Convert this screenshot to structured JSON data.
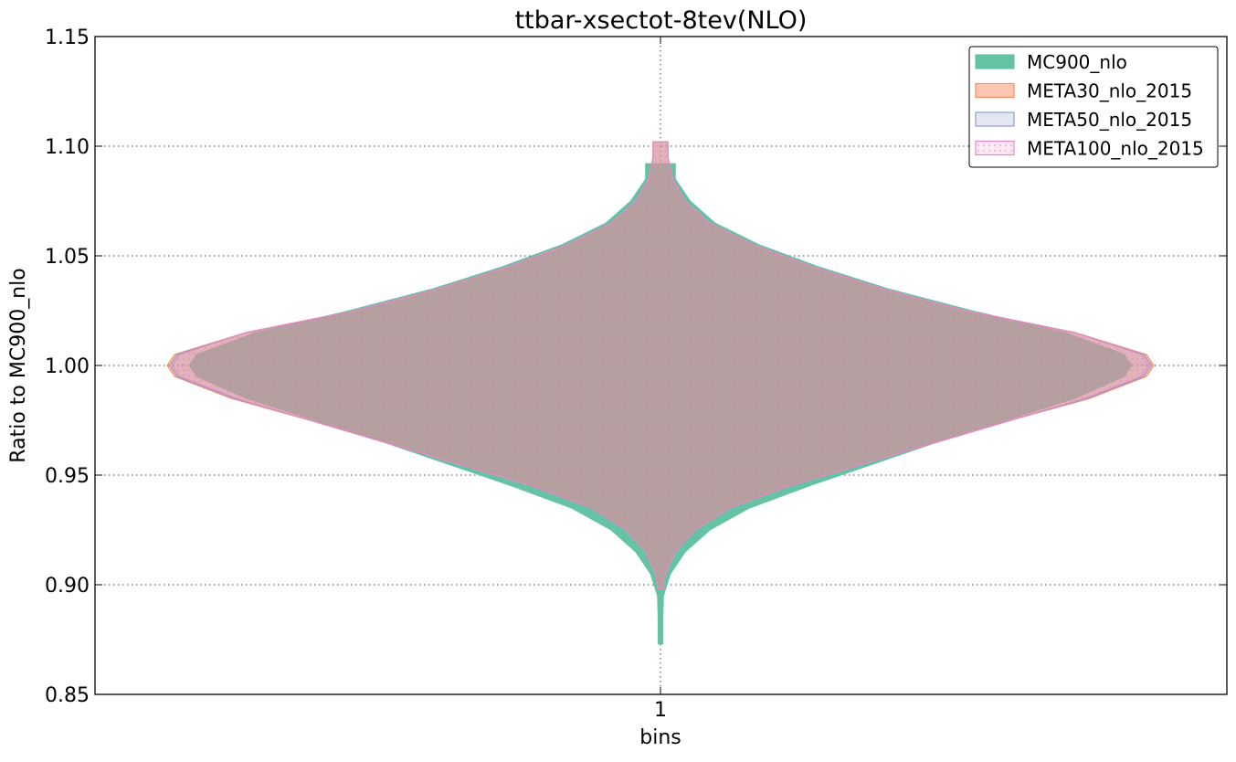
{
  "chart_data": {
    "type": "violin",
    "title": "ttbar-xsectot-8tev(NLO)",
    "xlabel": "bins",
    "ylabel": "Ratio to MC900_nlo",
    "categories": [
      "1"
    ],
    "ylim": [
      0.85,
      1.15
    ],
    "yticks": [
      "0.85",
      "0.90",
      "0.95",
      "1.00",
      "1.05",
      "1.10",
      "1.15"
    ],
    "grid": true,
    "legend_position": "top-right",
    "series": [
      {
        "name": "MC900_nlo",
        "fill": "#66c2a5",
        "edge": "#66c2a5",
        "fill_opacity": 1,
        "hatch": false,
        "ymin": 0.873,
        "ymax": 1.092,
        "profile": [
          [
            0.873,
            0.003
          ],
          [
            0.885,
            0.004
          ],
          [
            0.895,
            0.006
          ],
          [
            0.905,
            0.02
          ],
          [
            0.915,
            0.05
          ],
          [
            0.925,
            0.1
          ],
          [
            0.935,
            0.18
          ],
          [
            0.945,
            0.3
          ],
          [
            0.955,
            0.43
          ],
          [
            0.965,
            0.56
          ],
          [
            0.975,
            0.7
          ],
          [
            0.985,
            0.84
          ],
          [
            0.995,
            0.94
          ],
          [
            1.0,
            0.955
          ],
          [
            1.005,
            0.94
          ],
          [
            1.015,
            0.82
          ],
          [
            1.025,
            0.63
          ],
          [
            1.035,
            0.46
          ],
          [
            1.045,
            0.32
          ],
          [
            1.055,
            0.2
          ],
          [
            1.065,
            0.11
          ],
          [
            1.075,
            0.06
          ],
          [
            1.085,
            0.03
          ],
          [
            1.092,
            0.03
          ]
        ]
      },
      {
        "name": "META30_nlo_2015",
        "fill": "#fc8d62",
        "edge": "#fc8d62",
        "fill_opacity": 0.5,
        "hatch": false,
        "ymin": 0.898,
        "ymax": 1.102,
        "profile": [
          [
            0.898,
            0.005
          ],
          [
            0.905,
            0.01
          ],
          [
            0.915,
            0.03
          ],
          [
            0.925,
            0.07
          ],
          [
            0.935,
            0.14
          ],
          [
            0.945,
            0.26
          ],
          [
            0.955,
            0.41
          ],
          [
            0.965,
            0.56
          ],
          [
            0.975,
            0.71
          ],
          [
            0.985,
            0.87
          ],
          [
            0.995,
            0.985
          ],
          [
            1.0,
            1.0
          ],
          [
            1.005,
            0.985
          ],
          [
            1.015,
            0.84
          ],
          [
            1.025,
            0.62
          ],
          [
            1.035,
            0.45
          ],
          [
            1.045,
            0.31
          ],
          [
            1.055,
            0.19
          ],
          [
            1.065,
            0.1
          ],
          [
            1.075,
            0.05
          ],
          [
            1.085,
            0.025
          ],
          [
            1.095,
            0.015
          ],
          [
            1.102,
            0.015
          ]
        ]
      },
      {
        "name": "META50_nlo_2015",
        "fill": "#8da0cb",
        "edge": "#8da0cb",
        "fill_opacity": 0.25,
        "hatch": false,
        "ymin": 0.898,
        "ymax": 1.102,
        "profile": [
          [
            0.898,
            0.005
          ],
          [
            0.905,
            0.01
          ],
          [
            0.915,
            0.03
          ],
          [
            0.925,
            0.07
          ],
          [
            0.935,
            0.14
          ],
          [
            0.945,
            0.26
          ],
          [
            0.955,
            0.41
          ],
          [
            0.965,
            0.56
          ],
          [
            0.975,
            0.71
          ],
          [
            0.985,
            0.865
          ],
          [
            0.995,
            0.98
          ],
          [
            1.0,
            0.995
          ],
          [
            1.005,
            0.98
          ],
          [
            1.015,
            0.84
          ],
          [
            1.025,
            0.62
          ],
          [
            1.035,
            0.45
          ],
          [
            1.045,
            0.31
          ],
          [
            1.055,
            0.19
          ],
          [
            1.065,
            0.1
          ],
          [
            1.075,
            0.05
          ],
          [
            1.085,
            0.025
          ],
          [
            1.095,
            0.015
          ],
          [
            1.102,
            0.015
          ]
        ]
      },
      {
        "name": "META100_nlo_2015",
        "fill": "#e78ac3",
        "edge": "#e78ac3",
        "fill_opacity": 0.2,
        "hatch": true,
        "ymin": 0.898,
        "ymax": 1.102,
        "profile": [
          [
            0.898,
            0.005
          ],
          [
            0.905,
            0.01
          ],
          [
            0.915,
            0.03
          ],
          [
            0.925,
            0.07
          ],
          [
            0.935,
            0.14
          ],
          [
            0.945,
            0.26
          ],
          [
            0.955,
            0.41
          ],
          [
            0.965,
            0.56
          ],
          [
            0.975,
            0.71
          ],
          [
            0.985,
            0.86
          ],
          [
            0.995,
            0.975
          ],
          [
            1.0,
            0.99
          ],
          [
            1.005,
            0.975
          ],
          [
            1.015,
            0.84
          ],
          [
            1.025,
            0.62
          ],
          [
            1.035,
            0.45
          ],
          [
            1.045,
            0.31
          ],
          [
            1.055,
            0.19
          ],
          [
            1.065,
            0.1
          ],
          [
            1.075,
            0.05
          ],
          [
            1.085,
            0.025
          ],
          [
            1.095,
            0.015
          ],
          [
            1.102,
            0.015
          ]
        ]
      }
    ]
  }
}
